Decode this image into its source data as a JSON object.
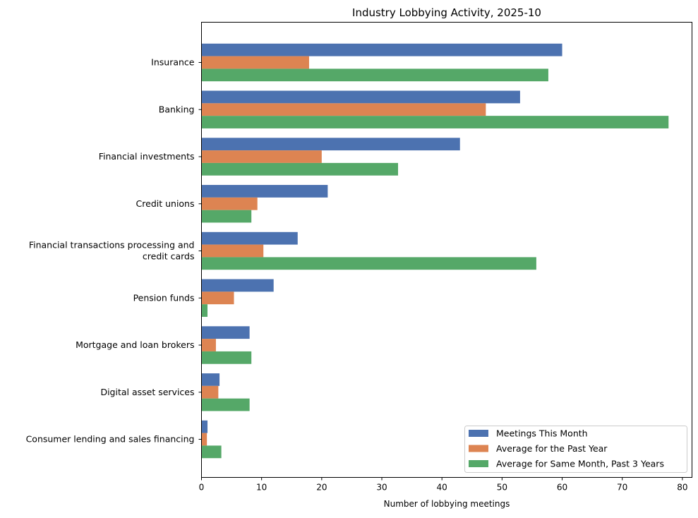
{
  "chart_data": {
    "type": "bar",
    "orientation": "horizontal",
    "title": "Industry Lobbying Activity, 2025-10",
    "xlabel": "Number of lobbying meetings",
    "ylabel": "",
    "xlim": [
      0,
      81.6
    ],
    "xticks": [
      0,
      10,
      20,
      30,
      40,
      50,
      60,
      70,
      80
    ],
    "grid": false,
    "legend_position": "lower-right",
    "categories": [
      "Insurance",
      "Banking",
      "Financial investments",
      "Credit unions",
      "Financial transactions processing and\ncredit cards",
      "Pension funds",
      "Mortgage and loan brokers",
      "Digital asset services",
      "Consumer lending and sales financing"
    ],
    "series": [
      {
        "name": "Meetings This Month",
        "color": "#4c72b0",
        "values": [
          60,
          53,
          43,
          21,
          16,
          12,
          8,
          3,
          1
        ]
      },
      {
        "name": "Average for the Past Year",
        "color": "#dd8452",
        "values": [
          17.9,
          47.3,
          20.0,
          9.3,
          10.3,
          5.4,
          2.4,
          2.8,
          0.9
        ]
      },
      {
        "name": "Average for Same Month, Past 3 Years",
        "color": "#55a868",
        "values": [
          57.7,
          77.7,
          32.7,
          8.3,
          55.7,
          1.0,
          8.3,
          8.0,
          3.3
        ]
      }
    ]
  }
}
